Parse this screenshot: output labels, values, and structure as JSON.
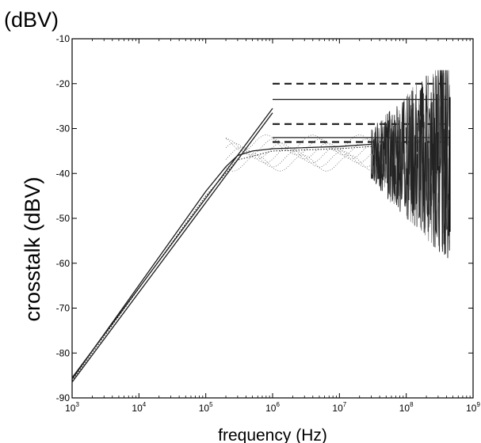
{
  "chart_data": {
    "type": "line",
    "title": "",
    "unit_label": "(dBV)",
    "xlabel": "frequency (Hz)",
    "ylabel": "crosstalk (dBV)",
    "xscale": "log",
    "xlim": [
      1000,
      1000000000
    ],
    "ylim": [
      -90,
      -10
    ],
    "grid": false,
    "legend": "none",
    "x_ticks": [
      {
        "base": "10",
        "exp": "3",
        "value": 1000
      },
      {
        "base": "10",
        "exp": "4",
        "value": 10000
      },
      {
        "base": "10",
        "exp": "5",
        "value": 100000
      },
      {
        "base": "10",
        "exp": "6",
        "value": 1000000
      },
      {
        "base": "10",
        "exp": "7",
        "value": 10000000
      },
      {
        "base": "10",
        "exp": "8",
        "value": 100000000
      },
      {
        "base": "10",
        "exp": "9",
        "value": 1000000000
      }
    ],
    "y_ticks": [
      "-10",
      "-20",
      "-30",
      "-40",
      "-50",
      "-60",
      "-70",
      "-80",
      "-90"
    ],
    "series": [
      {
        "style": "solid",
        "x": [
          1000,
          1000000
        ],
        "y": [
          -85.5,
          -25.5
        ]
      },
      {
        "style": "solid",
        "x": [
          1000,
          1000000
        ],
        "y": [
          -86.5,
          -26.5
        ]
      },
      {
        "style": "solid",
        "x": [
          1000,
          100000,
          200000,
          300000,
          500000,
          1000000,
          10000000,
          30000000
        ],
        "y": [
          -85.8,
          -44,
          -38.5,
          -36,
          -35,
          -34.5,
          -34,
          -33.5
        ]
      },
      {
        "style": "dotted",
        "x": [
          1000,
          100000,
          300000,
          1000000,
          10000000,
          30000000
        ],
        "y": [
          -86.2,
          -45,
          -37,
          -35,
          -34.5,
          -34
        ]
      },
      {
        "style": "solid",
        "x": [
          1000000,
          450000000
        ],
        "y": [
          -23.5,
          -23.5
        ]
      },
      {
        "style": "solid",
        "x": [
          1000000,
          450000000
        ],
        "y": [
          -32,
          -32
        ]
      },
      {
        "style": "dashed",
        "x": [
          1000000,
          450000000
        ],
        "y": [
          -20,
          -20
        ]
      },
      {
        "style": "dashed",
        "x": [
          1000000,
          450000000
        ],
        "y": [
          -29,
          -29
        ]
      },
      {
        "style": "dashed",
        "x": [
          1000000,
          450000000
        ],
        "y": [
          -33,
          -33
        ]
      }
    ],
    "noise_region": {
      "x_range": [
        30000000,
        450000000
      ],
      "y_center": -36,
      "y_min": -65,
      "y_max": -17
    },
    "colors": {
      "axes": "#000000",
      "background": "#ffffff",
      "trace": "#1a1a1a"
    }
  }
}
